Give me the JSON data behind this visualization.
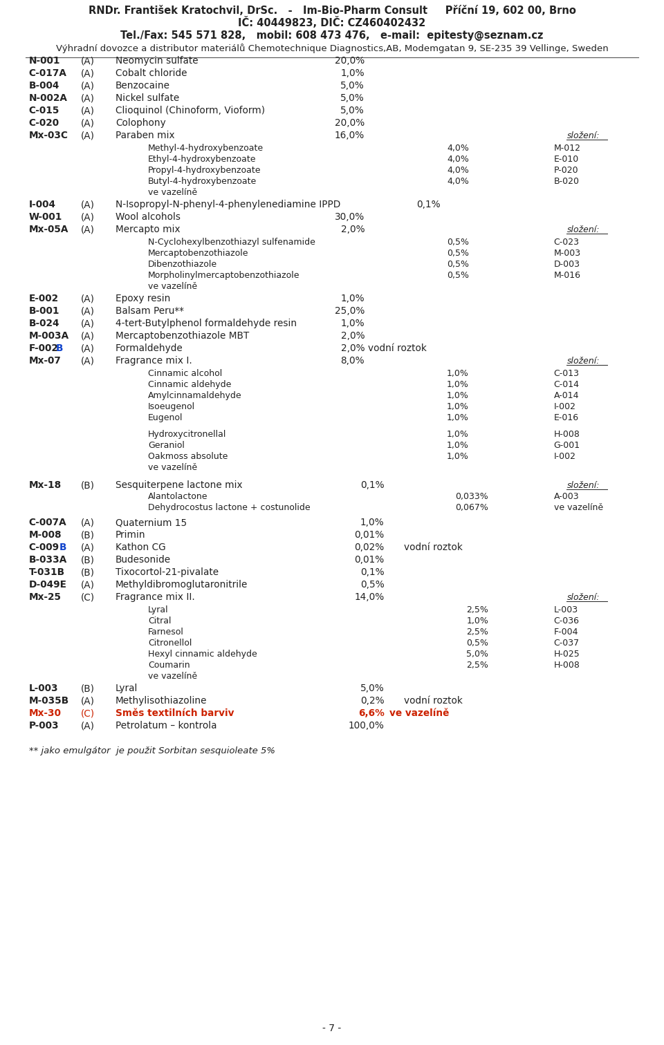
{
  "background": "#ffffff",
  "page_width": 9.6,
  "page_height": 15.12,
  "header_line1": "RNDr. František Kratochvil, DrSc.   -   Im-Bio-Pharm Consult     Příční 19, 602 00, Brno",
  "header_line2": "IČ: 40449823, DIČ: CZ460402432",
  "header_line3": "Tel./Fax: 545 571 828,   mobil: 608 473 476,   e-mail:  epitesty@seznam.cz",
  "header_line4": "Výhradní dovozce a distributor materiálů Chemotechnique Diagnostics,AB, Modemgatan 9, SE-235 39 Vellinge, Sweden",
  "footer": "- 7 -",
  "footnote": "** jako emulgátor  je použit Sorbitan sesquioleate 5%",
  "col1": 15,
  "col2": 95,
  "col3": 148,
  "col4": 530,
  "col5": 670,
  "col6": 730,
  "col7": 820,
  "mfs": 9.8,
  "sfs": 9.0,
  "hfs": 10.5,
  "text_color": "#222222",
  "blue_color": "#1144cc",
  "red_color": "#cc2200"
}
